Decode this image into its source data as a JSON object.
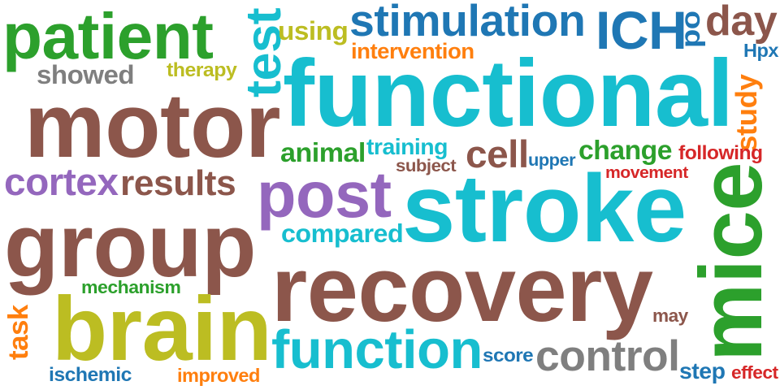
{
  "colors": {
    "brown": "#8c564b",
    "green": "#2ca02c",
    "blue": "#1f77b4",
    "cyan": "#17becf",
    "purple": "#9467bd",
    "olive": "#bcbd22",
    "orange": "#ff7f0e",
    "red": "#d62728",
    "gray": "#7f7f7f"
  },
  "words": [
    {
      "text": "patient",
      "color": "green"
    },
    {
      "text": "test",
      "color": "cyan"
    },
    {
      "text": "using",
      "color": "olive"
    },
    {
      "text": "stimulation",
      "color": "blue"
    },
    {
      "text": "ICH",
      "color": "blue"
    },
    {
      "text": "po",
      "color": "blue"
    },
    {
      "text": "day",
      "color": "brown"
    },
    {
      "text": "intervention",
      "color": "orange"
    },
    {
      "text": "Hpx",
      "color": "blue"
    },
    {
      "text": "showed",
      "color": "gray"
    },
    {
      "text": "therapy",
      "color": "olive"
    },
    {
      "text": "functional",
      "color": "cyan"
    },
    {
      "text": "study",
      "color": "orange"
    },
    {
      "text": "motor",
      "color": "brown"
    },
    {
      "text": "animal",
      "color": "green"
    },
    {
      "text": "training",
      "color": "cyan"
    },
    {
      "text": "cell",
      "color": "brown"
    },
    {
      "text": "change",
      "color": "green"
    },
    {
      "text": "upper",
      "color": "blue"
    },
    {
      "text": "following",
      "color": "red"
    },
    {
      "text": "subject",
      "color": "brown"
    },
    {
      "text": "movement",
      "color": "red"
    },
    {
      "text": "cortex",
      "color": "purple"
    },
    {
      "text": "results",
      "color": "brown"
    },
    {
      "text": "post",
      "color": "purple"
    },
    {
      "text": "stroke",
      "color": "cyan"
    },
    {
      "text": "mice",
      "color": "green"
    },
    {
      "text": "group",
      "color": "brown"
    },
    {
      "text": "compared",
      "color": "cyan"
    },
    {
      "text": "recovery",
      "color": "brown"
    },
    {
      "text": "mechanism",
      "color": "green"
    },
    {
      "text": "brain",
      "color": "olive"
    },
    {
      "text": "task",
      "color": "orange"
    },
    {
      "text": "may",
      "color": "brown"
    },
    {
      "text": "function",
      "color": "cyan"
    },
    {
      "text": "score",
      "color": "blue"
    },
    {
      "text": "control",
      "color": "gray"
    },
    {
      "text": "ischemic",
      "color": "blue"
    },
    {
      "text": "improved",
      "color": "orange"
    },
    {
      "text": "step",
      "color": "blue"
    },
    {
      "text": "effect",
      "color": "red"
    }
  ]
}
